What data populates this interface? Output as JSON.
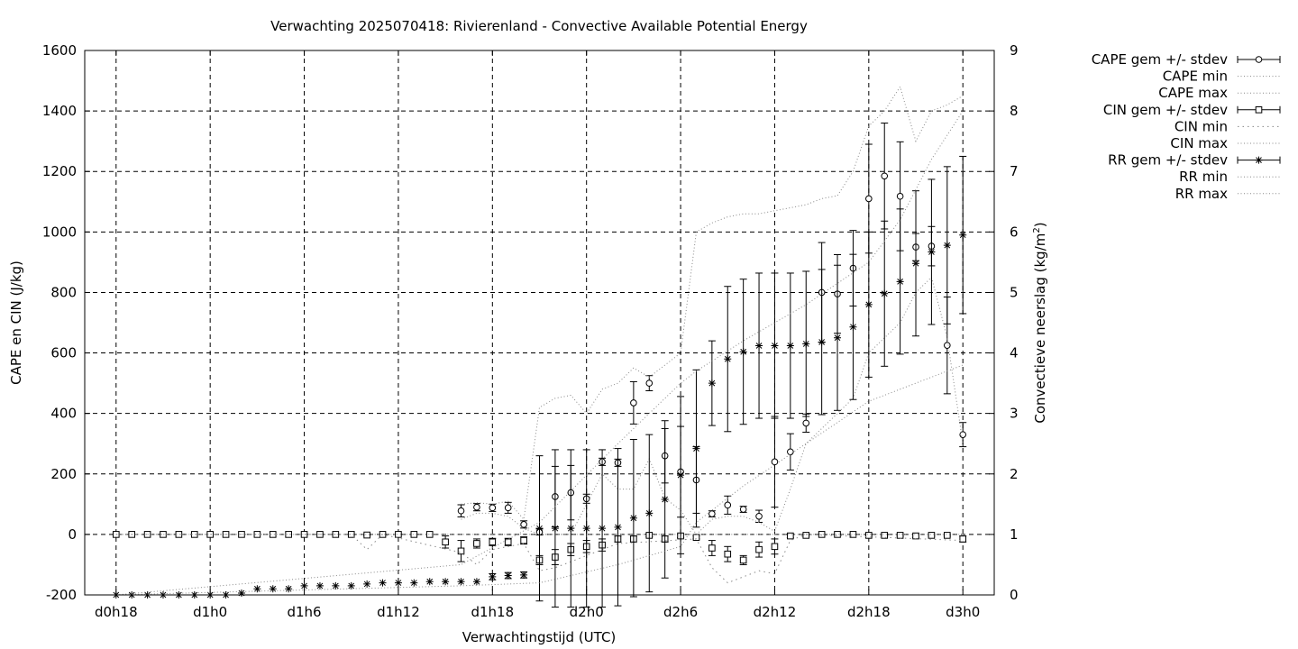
{
  "chart_data": {
    "type": "line",
    "title": "Verwachting 2025070418: Rivierenland - Convective Available Potential Energy",
    "xlabel": "Verwachtingstijd (UTC)",
    "ylabel": "CAPE en CIN (J/kg)",
    "y2label": "Convectieve neerslag (kg/m",
    "y2label_sup": "2",
    "y2label_end": ")",
    "x_tick_labels": [
      "d0h18",
      "d1h0",
      "d1h6",
      "d1h12",
      "d1h18",
      "d2h0",
      "d2h6",
      "d2h12",
      "d2h18",
      "d3h0"
    ],
    "x_tick_hours": [
      18,
      24,
      30,
      36,
      42,
      48,
      54,
      60,
      66,
      72
    ],
    "xlim": [
      16,
      74
    ],
    "ylim": [
      -200,
      1600
    ],
    "y_ticks": [
      -200,
      0,
      200,
      400,
      600,
      800,
      1000,
      1200,
      1400,
      1600
    ],
    "y2lim": [
      0,
      9
    ],
    "y2_ticks": [
      0,
      1,
      2,
      3,
      4,
      5,
      6,
      7,
      8,
      9
    ],
    "grid": true,
    "legend_position": "outside-right",
    "legend": [
      "CAPE gem +/- stdev",
      "CAPE min",
      "CAPE max",
      "CIN gem +/- stdev",
      "CIN min",
      "CIN max",
      "RR gem +/- stdev",
      "RR min",
      "RR max"
    ],
    "series": [
      {
        "name": "CAPE gem +/- stdev",
        "axis": "y1",
        "marker": "circle",
        "x": [
          40,
          41,
          42,
          43,
          44,
          45,
          46,
          47,
          48,
          49,
          50,
          51,
          52,
          53,
          54,
          55,
          56,
          57,
          58,
          59,
          60,
          61,
          62,
          63,
          64,
          65,
          66,
          67,
          68,
          69,
          70,
          71,
          72
        ],
        "y": [
          78,
          90,
          88,
          88,
          33,
          8,
          125,
          138,
          118,
          240,
          237,
          435,
          500,
          260,
          207,
          180,
          68,
          97,
          83,
          60,
          240,
          273,
          368,
          800,
          795,
          880,
          1110,
          1185,
          1118,
          950,
          953,
          625,
          330
        ],
        "err": [
          20,
          12,
          12,
          18,
          12,
          10,
          100,
          90,
          15,
          12,
          12,
          70,
          25,
          90,
          150,
          110,
          10,
          30,
          10,
          20,
          150,
          60,
          30,
          165,
          130,
          125,
          180,
          175,
          180,
          45,
          65,
          160,
          40
        ]
      },
      {
        "name": "CAPE min",
        "axis": "y1",
        "x": [
          40,
          41,
          42,
          43,
          44,
          45,
          46,
          47,
          48,
          49,
          50,
          51,
          52,
          53,
          54,
          55,
          56,
          57,
          58,
          59,
          60,
          61,
          62,
          63,
          64,
          65,
          66,
          67,
          68,
          69,
          70,
          71,
          72
        ],
        "y": [
          50,
          70,
          70,
          60,
          20,
          0,
          0,
          0,
          100,
          200,
          150,
          150,
          250,
          120,
          80,
          0,
          50,
          60,
          60,
          40,
          10,
          150,
          300,
          350,
          400,
          450,
          600,
          650,
          700,
          800,
          850,
          650,
          300
        ]
      },
      {
        "name": "CAPE max",
        "axis": "y1",
        "x": [
          40,
          41,
          42,
          43,
          44,
          45,
          46,
          47,
          48,
          49,
          50,
          51,
          52,
          53,
          54,
          55,
          56,
          57,
          58,
          59,
          60,
          61,
          62,
          63,
          64,
          65,
          66,
          67,
          68,
          69,
          70,
          71,
          72
        ],
        "y": [
          100,
          105,
          100,
          110,
          50,
          420,
          450,
          460,
          400,
          480,
          500,
          550,
          520,
          560,
          600,
          1000,
          1030,
          1050,
          1060,
          1060,
          1070,
          1080,
          1090,
          1110,
          1120,
          1200,
          1350,
          1400,
          1480,
          1300,
          1400,
          1420,
          1450
        ]
      },
      {
        "name": "CIN gem +/- stdev",
        "axis": "y1",
        "x": [
          18,
          19,
          20,
          21,
          22,
          23,
          24,
          25,
          26,
          27,
          28,
          29,
          30,
          31,
          32,
          33,
          34,
          35,
          36,
          37,
          38,
          39,
          40,
          41,
          42,
          43,
          44,
          45,
          46,
          47,
          48,
          49,
          50,
          51,
          52,
          53,
          54,
          55,
          56,
          57,
          58,
          59,
          60,
          61,
          62,
          63,
          64,
          65,
          66,
          67,
          68,
          69,
          70,
          71,
          72
        ],
        "y": [
          0,
          0,
          0,
          0,
          0,
          0,
          0,
          0,
          0,
          0,
          0,
          0,
          0,
          0,
          0,
          0,
          -2,
          0,
          0,
          0,
          0,
          -25,
          -55,
          -30,
          -25,
          -25,
          -20,
          -85,
          -75,
          -50,
          -40,
          -35,
          -15,
          -15,
          -3,
          -15,
          -5,
          -10,
          -45,
          -65,
          -85,
          -50,
          -40,
          -5,
          -3,
          0,
          0,
          0,
          -3,
          -3,
          -3,
          -5,
          -3,
          -3,
          -15
        ],
        "err": [
          0,
          0,
          0,
          0,
          0,
          0,
          0,
          0,
          0,
          0,
          0,
          0,
          0,
          0,
          0,
          0,
          3,
          0,
          0,
          0,
          0,
          20,
          35,
          15,
          12,
          12,
          12,
          15,
          25,
          20,
          20,
          20,
          10,
          10,
          5,
          10,
          5,
          5,
          25,
          25,
          15,
          25,
          25,
          5,
          3,
          0,
          0,
          0,
          3,
          3,
          3,
          5,
          3,
          3,
          10
        ]
      },
      {
        "name": "CIN min",
        "axis": "y1",
        "x": [
          18,
          30,
          33,
          34,
          35,
          40,
          41,
          42,
          43,
          44,
          45,
          46,
          50,
          55,
          56,
          57,
          58,
          59,
          60,
          61,
          62,
          72
        ],
        "y": [
          0,
          0,
          0,
          -50,
          0,
          -60,
          -100,
          -50,
          -40,
          -30,
          -120,
          -110,
          -30,
          -15,
          -110,
          -160,
          -140,
          -120,
          -130,
          -20,
          0,
          -20
        ]
      },
      {
        "name": "CIN max",
        "axis": "y1",
        "x": [
          18,
          40,
          41,
          45,
          50,
          55,
          60,
          72
        ],
        "y": [
          0,
          0,
          0,
          0,
          0,
          0,
          0,
          0
        ]
      },
      {
        "name": "RR gem +/- stdev",
        "axis": "y2",
        "marker": "star",
        "x": [
          18,
          19,
          20,
          21,
          22,
          23,
          24,
          25,
          26,
          27,
          28,
          29,
          30,
          31,
          32,
          33,
          34,
          35,
          36,
          37,
          38,
          39,
          40,
          41,
          42,
          43,
          44,
          45,
          46,
          47,
          48,
          49,
          50,
          51,
          52,
          53,
          54,
          55,
          56,
          57,
          58,
          59,
          60,
          61,
          62,
          63,
          64,
          65,
          66,
          67,
          68,
          69,
          70,
          71,
          72
        ],
        "y": [
          0,
          0,
          0,
          0,
          0,
          0,
          0,
          0,
          0.03,
          0.1,
          0.1,
          0.1,
          0.15,
          0.15,
          0.15,
          0.15,
          0.18,
          0.2,
          0.2,
          0.2,
          0.22,
          0.22,
          0.22,
          0.22,
          0.3,
          0.32,
          0.33,
          1.1,
          1.1,
          1.1,
          1.1,
          1.1,
          1.12,
          1.27,
          1.35,
          1.58,
          1.98,
          2.42,
          3.5,
          3.9,
          4.02,
          4.12,
          4.12,
          4.12,
          4.15,
          4.18,
          4.25,
          4.43,
          4.8,
          4.98,
          5.18,
          5.48,
          5.67,
          5.78,
          5.95
        ],
        "err": [
          0,
          0,
          0,
          0,
          0,
          0,
          0,
          0,
          0,
          0,
          0,
          0,
          0,
          0,
          0,
          0,
          0,
          0,
          0,
          0,
          0,
          0,
          0,
          0,
          0.05,
          0.05,
          0.05,
          1.2,
          1.3,
          1.3,
          1.3,
          1.3,
          1.3,
          1.3,
          1.3,
          1.3,
          1.3,
          1.3,
          0.7,
          1.2,
          1.2,
          1.2,
          1.2,
          1.2,
          1.2,
          1.2,
          1.2,
          1.2,
          1.2,
          1.2,
          1.2,
          1.2,
          1.2,
          1.3,
          1.3
        ]
      },
      {
        "name": "RR min",
        "axis": "y2",
        "x": [
          18,
          40,
          45,
          50,
          54,
          55,
          58,
          62,
          66,
          70,
          72
        ],
        "y": [
          0,
          0.15,
          0.2,
          0.5,
          0.8,
          1.2,
          1.8,
          2.5,
          3.2,
          3.6,
          3.8
        ]
      },
      {
        "name": "RR max",
        "axis": "y2",
        "x": [
          18,
          40,
          45,
          50,
          54,
          55,
          58,
          62,
          66,
          68,
          70,
          72
        ],
        "y": [
          0,
          0.5,
          1.2,
          2.5,
          3.5,
          3.7,
          4.2,
          4.8,
          5.5,
          6.2,
          7.2,
          8.0
        ]
      }
    ]
  }
}
